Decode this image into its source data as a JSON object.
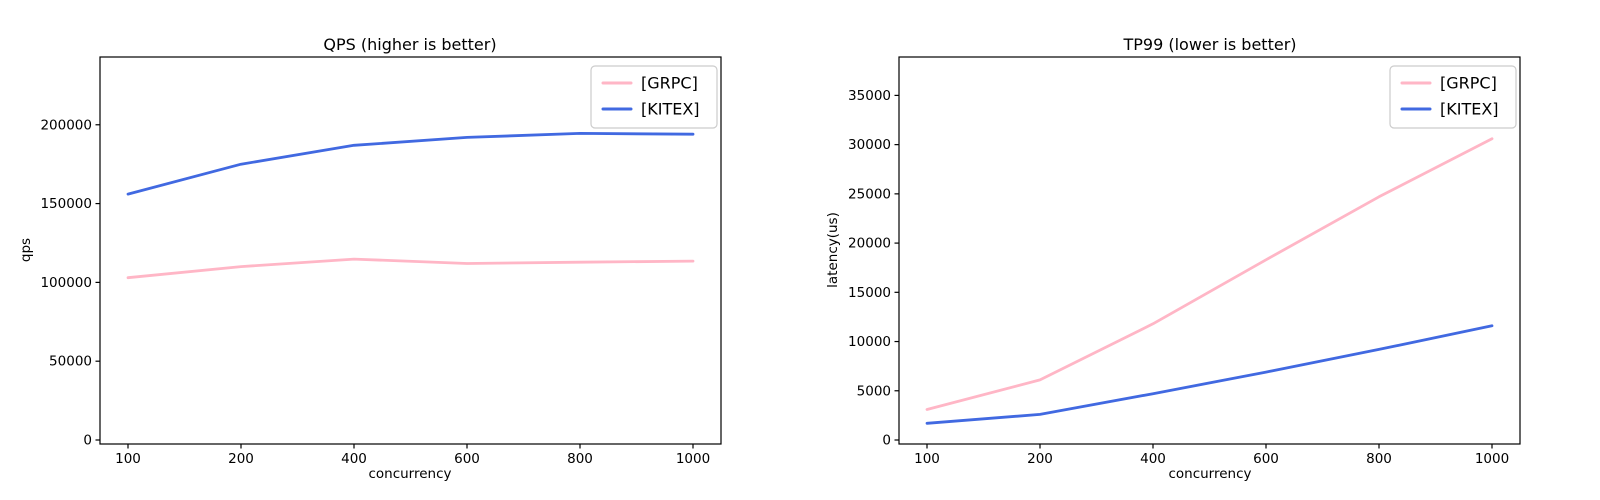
{
  "figure": {
    "background": "#ffffff",
    "text_color": "#000000",
    "axis_color": "#000000",
    "legend_border_color": "#cccccc"
  },
  "chart_data": [
    {
      "type": "line",
      "title": "QPS (higher is better)",
      "xlabel": "concurrency",
      "ylabel": "qps",
      "categories": [
        100,
        200,
        400,
        600,
        800,
        1000
      ],
      "series": [
        {
          "name": "[GRPC]",
          "color": "#ffb6c6",
          "values": [
            103000,
            110000,
            114800,
            112000,
            112800,
            113500
          ]
        },
        {
          "name": "[KITEX]",
          "color": "#4169e1",
          "values": [
            156000,
            175000,
            187000,
            192000,
            194500,
            194000
          ]
        }
      ],
      "ylim": [
        0,
        243000
      ],
      "yticks": [
        0,
        50000,
        100000,
        150000,
        200000
      ],
      "grid": false,
      "legend_position": "upper right"
    },
    {
      "type": "line",
      "title": "TP99 (lower is better)",
      "xlabel": "concurrency",
      "ylabel": "latency(us)",
      "categories": [
        100,
        200,
        400,
        600,
        800,
        1000
      ],
      "series": [
        {
          "name": "[GRPC]",
          "color": "#ffb6c6",
          "values": [
            3100,
            6100,
            11800,
            18300,
            24700,
            30600
          ]
        },
        {
          "name": "[KITEX]",
          "color": "#4169e1",
          "values": [
            1700,
            2600,
            4700,
            6900,
            9200,
            11600
          ]
        }
      ],
      "ylim": [
        0,
        38900
      ],
      "yticks": [
        0,
        5000,
        10000,
        15000,
        20000,
        25000,
        30000,
        35000
      ],
      "grid": false,
      "legend_position": "upper right"
    }
  ]
}
